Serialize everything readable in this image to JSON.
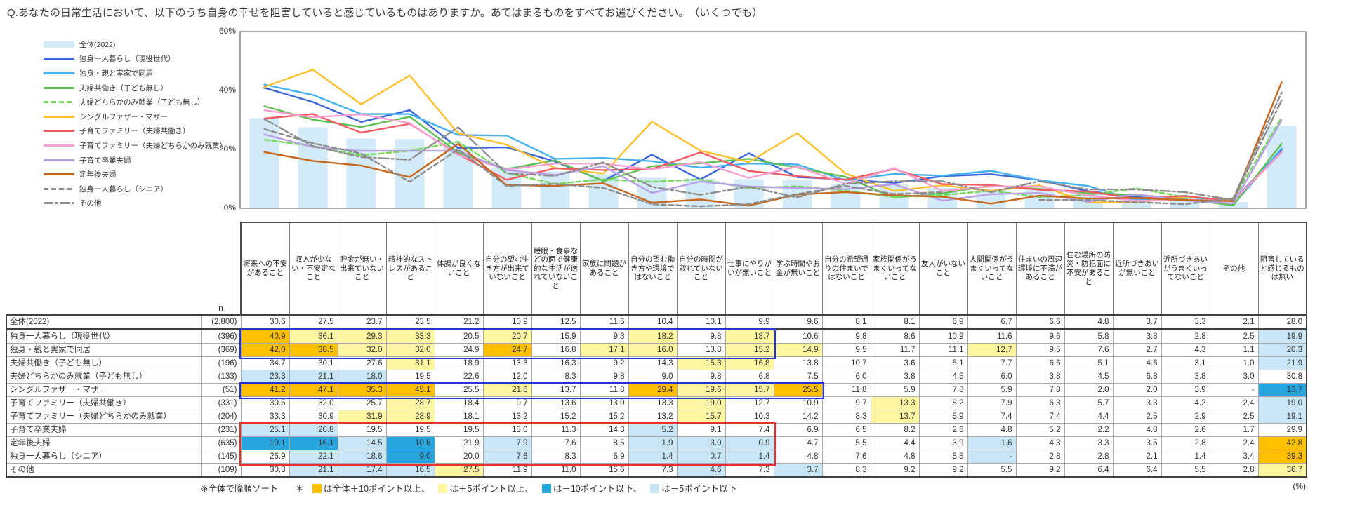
{
  "title": "Q.あなたの日常生活において、以下のうち自身の幸せを阻害していると感じているものはありますか。あてはまるものをすべてお選びください。　（いくつでも）",
  "chart": {
    "y_ticks": [
      {
        "label": "60%",
        "value": 60
      },
      {
        "label": "40%",
        "value": 40
      },
      {
        "label": "20%",
        "value": 20
      },
      {
        "label": "0%",
        "value": 0
      }
    ]
  },
  "chart_data": {
    "type": "line",
    "title": "",
    "xlabel": "",
    "ylabel": "",
    "ylim": [
      0,
      60
    ],
    "grid": false,
    "legend_position": "left",
    "categories": [
      "将来への不安があること",
      "収入が少ない・不安定なこと",
      "貯金が無い・出来ていないこと",
      "精神的なストレスがあること",
      "体調が良くないこと",
      "自分の望む生き方が出来ていないこと",
      "睡眠・食事などの面で健康的な生活が送れていないこと",
      "家族に問題があること",
      "自分の望む働き方や環境ではないこと",
      "自分の時間が取れていないこと",
      "仕事にやりがいが無いこと",
      "学ぶ時間やお金が無いこと",
      "自分の希望通りの住まいではないこと",
      "家族関係がうまくいってないこと",
      "友人がいないこと",
      "人間関係がうまくいってないこと",
      "住まいの周辺環境に不満があること",
      "住む場所の防災・防犯面に不安があること",
      "近所づきあいが無いこと",
      "近所づきあいがうまくいってないこと",
      "その他",
      "阻害していると感じるものは無い"
    ],
    "series": [
      {
        "name": "全体(2022)",
        "style": "band",
        "color": "#D3EAF8",
        "values": [
          30.6,
          27.5,
          23.7,
          23.5,
          21.2,
          13.9,
          12.5,
          11.6,
          10.4,
          10.1,
          9.9,
          9.6,
          8.1,
          8.1,
          6.9,
          6.7,
          6.6,
          4.8,
          3.7,
          3.3,
          2.1,
          28.0
        ]
      },
      {
        "name": "独身一人暮らし（現役世代）",
        "style": "solid",
        "color": "#3D66D9",
        "values": [
          40.9,
          36.1,
          29.3,
          33.3,
          20.5,
          20.7,
          15.9,
          9.3,
          18.2,
          9.8,
          18.7,
          10.6,
          9.8,
          8.6,
          10.9,
          11.6,
          9.6,
          5.8,
          3.8,
          2.8,
          2.5,
          19.9
        ]
      },
      {
        "name": "独身・親と実家で同居",
        "style": "solid",
        "color": "#45B1F0",
        "values": [
          42.0,
          38.5,
          32.0,
          32.0,
          24.9,
          24.7,
          16.8,
          17.1,
          16.0,
          13.8,
          15.2,
          14.9,
          9.5,
          11.7,
          11.1,
          12.7,
          9.5,
          7.6,
          2.7,
          4.3,
          1.1,
          20.3
        ]
      },
      {
        "name": "夫婦共働き（子ども無し）",
        "style": "solid",
        "color": "#5EC050",
        "values": [
          34.7,
          30.1,
          27.6,
          31.1,
          18.9,
          13.3,
          16.3,
          9.2,
          14.3,
          15.3,
          16.8,
          13.8,
          10.7,
          3.6,
          5.1,
          7.7,
          6.6,
          5.1,
          4.6,
          3.1,
          1.0,
          21.9
        ]
      },
      {
        "name": "夫婦どちらかのみ就業（子ども無し）",
        "style": "dashed",
        "color": "#77D95A",
        "values": [
          23.3,
          21.1,
          18.0,
          19.5,
          22.6,
          12.0,
          8.3,
          9.8,
          9.0,
          9.8,
          6.8,
          7.5,
          6.0,
          3.8,
          4.5,
          6.0,
          3.8,
          4.5,
          6.8,
          3.8,
          3.0,
          30.8
        ]
      },
      {
        "name": "シングルファザー・マザー",
        "style": "solid",
        "color": "#FFC02E",
        "values": [
          41.2,
          47.1,
          35.3,
          45.1,
          25.5,
          21.6,
          13.7,
          11.8,
          29.4,
          19.6,
          15.7,
          25.5,
          11.8,
          5.9,
          7.8,
          5.9,
          7.8,
          2.0,
          2.0,
          3.9,
          null,
          13.7
        ]
      },
      {
        "name": "子育てファミリー（夫婦共働き）",
        "style": "solid",
        "color": "#F15B64",
        "values": [
          30.5,
          32.0,
          25.7,
          28.7,
          18.4,
          9.7,
          13.6,
          13.0,
          13.3,
          19.0,
          12.7,
          10.9,
          9.7,
          13.3,
          8.2,
          7.9,
          6.3,
          5.7,
          3.3,
          4.2,
          2.4,
          19.0
        ]
      },
      {
        "name": "子育てファミリー（夫婦どちらかのみ就業）",
        "style": "solid",
        "color": "#F89FD4",
        "values": [
          33.3,
          30.9,
          31.9,
          28.9,
          18.1,
          13.2,
          15.2,
          15.2,
          13.2,
          15.7,
          10.3,
          14.2,
          8.3,
          13.7,
          5.9,
          7.4,
          7.4,
          4.4,
          2.5,
          2.9,
          2.5,
          19.1
        ]
      },
      {
        "name": "子育て卒業夫婦",
        "style": "solid",
        "color": "#B9A0E8",
        "values": [
          25.1,
          20.8,
          19.5,
          19.5,
          19.5,
          13.0,
          11.3,
          14.3,
          5.2,
          9.1,
          7.4,
          6.9,
          6.5,
          8.2,
          2.6,
          4.8,
          5.2,
          2.2,
          4.8,
          2.6,
          1.7,
          29.9
        ]
      },
      {
        "name": "定年後夫婦",
        "style": "solid",
        "color": "#C8661B",
        "values": [
          19.1,
          16.1,
          14.5,
          10.6,
          21.9,
          7.9,
          7.6,
          8.5,
          1.9,
          3.0,
          0.9,
          4.7,
          5.5,
          4.4,
          3.9,
          1.6,
          4.3,
          3.3,
          3.5,
          2.8,
          2.4,
          42.8
        ]
      },
      {
        "name": "独身一人暮らし（シニア）",
        "style": "dashed",
        "color": "#8C8C8C",
        "values": [
          26.9,
          22.1,
          18.6,
          9.0,
          20.0,
          7.6,
          8.3,
          6.9,
          1.4,
          0.7,
          1.4,
          4.8,
          7.6,
          4.8,
          5.5,
          null,
          2.8,
          2.8,
          2.1,
          1.4,
          3.4,
          39.3
        ]
      },
      {
        "name": "その他",
        "style": "dashdot",
        "color": "#8C8C8C",
        "values": [
          30.3,
          21.1,
          17.4,
          16.5,
          27.5,
          11.9,
          11.0,
          15.6,
          7.3,
          4.6,
          7.3,
          3.7,
          8.3,
          9.2,
          9.2,
          5.5,
          9.2,
          6.4,
          6.4,
          5.5,
          2.8,
          36.7
        ]
      }
    ]
  },
  "table": {
    "n_header": "n",
    "rows": [
      {
        "label": "全体(2022)",
        "n": "(2,800)",
        "values": [
          "30.6",
          "27.5",
          "23.7",
          "23.5",
          "21.2",
          "13.9",
          "12.5",
          "11.6",
          "10.4",
          "10.1",
          "9.9",
          "9.6",
          "8.1",
          "8.1",
          "6.9",
          "6.7",
          "6.6",
          "4.8",
          "3.7",
          "3.3",
          "2.1",
          "28.0"
        ],
        "hl": [
          "",
          "",
          "",
          "",
          "",
          "",
          "",
          "",
          "",
          "",
          "",
          "",
          "",
          "",
          "",
          "",
          "",
          "",
          "",
          "",
          "",
          ""
        ]
      },
      {
        "label": "独身一人暮らし（現役世代）",
        "n": "(396)",
        "values": [
          "40.9",
          "36.1",
          "29.3",
          "33.3",
          "20.5",
          "20.7",
          "15.9",
          "9.3",
          "18.2",
          "9.8",
          "18.7",
          "10.6",
          "9.8",
          "8.6",
          "10.9",
          "11.6",
          "9.6",
          "5.8",
          "3.8",
          "2.8",
          "2.5",
          "19.9"
        ],
        "hl": [
          "o",
          "y",
          "y",
          "y",
          "",
          "y",
          "",
          "",
          "y",
          "",
          "y",
          "",
          "",
          "",
          "",
          "",
          "",
          "",
          "",
          "",
          "",
          "lb"
        ]
      },
      {
        "label": "独身・親と実家で同居",
        "n": "(369)",
        "values": [
          "42.0",
          "38.5",
          "32.0",
          "32.0",
          "24.9",
          "24.7",
          "16.8",
          "17.1",
          "16.0",
          "13.8",
          "15.2",
          "14.9",
          "9.5",
          "11.7",
          "11.1",
          "12.7",
          "9.5",
          "7.6",
          "2.7",
          "4.3",
          "1.1",
          "20.3"
        ],
        "hl": [
          "o",
          "o",
          "y",
          "y",
          "",
          "o",
          "",
          "y",
          "y",
          "",
          "y",
          "y",
          "",
          "",
          "",
          "y",
          "",
          "",
          "",
          "",
          "",
          "lb"
        ]
      },
      {
        "label": "夫婦共働き（子ども無し）",
        "n": "(196)",
        "values": [
          "34.7",
          "30.1",
          "27.6",
          "31.1",
          "18.9",
          "13.3",
          "16.3",
          "9.2",
          "14.3",
          "15.3",
          "16.8",
          "13.8",
          "10.7",
          "3.6",
          "5.1",
          "7.7",
          "6.6",
          "5.1",
          "4.6",
          "3.1",
          "1.0",
          "21.9"
        ],
        "hl": [
          "",
          "",
          "",
          "y",
          "",
          "",
          "",
          "",
          "",
          "y",
          "y",
          "",
          "",
          "",
          "",
          "",
          "",
          "",
          "",
          "",
          "",
          "lb"
        ]
      },
      {
        "label": "夫婦どちらかのみ就業（子ども無し）",
        "n": "(133)",
        "values": [
          "23.3",
          "21.1",
          "18.0",
          "19.5",
          "22.6",
          "12.0",
          "8.3",
          "9.8",
          "9.0",
          "9.8",
          "6.8",
          "7.5",
          "6.0",
          "3.8",
          "4.5",
          "6.0",
          "3.8",
          "4.5",
          "6.8",
          "3.8",
          "3.0",
          "30.8"
        ],
        "hl": [
          "lb",
          "lb",
          "lb",
          "",
          "",
          "",
          "",
          "",
          "",
          "",
          "",
          "",
          "",
          "",
          "",
          "",
          "",
          "",
          "",
          "",
          "",
          ""
        ]
      },
      {
        "label": "シングルファザー・マザー",
        "n": "(51)",
        "values": [
          "41.2",
          "47.1",
          "35.3",
          "45.1",
          "25.5",
          "21.6",
          "13.7",
          "11.8",
          "29.4",
          "19.6",
          "15.7",
          "25.5",
          "11.8",
          "5.9",
          "7.8",
          "5.9",
          "7.8",
          "2.0",
          "2.0",
          "3.9",
          "-",
          "13.7"
        ],
        "hl": [
          "o",
          "o",
          "o",
          "o",
          "",
          "y",
          "",
          "",
          "o",
          "y",
          "y",
          "o",
          "",
          "",
          "",
          "",
          "",
          "",
          "",
          "",
          "",
          "b"
        ]
      },
      {
        "label": "子育てファミリー（夫婦共働き）",
        "n": "(331)",
        "values": [
          "30.5",
          "32.0",
          "25.7",
          "28.7",
          "18.4",
          "9.7",
          "13.6",
          "13.0",
          "13.3",
          "19.0",
          "12.7",
          "10.9",
          "9.7",
          "13.3",
          "8.2",
          "7.9",
          "6.3",
          "5.7",
          "3.3",
          "4.2",
          "2.4",
          "19.0"
        ],
        "hl": [
          "",
          "",
          "",
          "y",
          "",
          "",
          "",
          "",
          "",
          "y",
          "",
          "",
          "",
          "y",
          "",
          "",
          "",
          "",
          "",
          "",
          "",
          "lb"
        ]
      },
      {
        "label": "子育てファミリー（夫婦どちらかのみ就業）",
        "n": "(204)",
        "values": [
          "33.3",
          "30.9",
          "31.9",
          "28.9",
          "18.1",
          "13.2",
          "15.2",
          "15.2",
          "13.2",
          "15.7",
          "10.3",
          "14.2",
          "8.3",
          "13.7",
          "5.9",
          "7.4",
          "7.4",
          "4.4",
          "2.5",
          "2.9",
          "2.5",
          "19.1"
        ],
        "hl": [
          "",
          "",
          "y",
          "y",
          "",
          "",
          "",
          "",
          "",
          "y",
          "",
          "",
          "",
          "y",
          "",
          "",
          "",
          "",
          "",
          "",
          "",
          "lb"
        ]
      },
      {
        "label": "子育て卒業夫婦",
        "n": "(231)",
        "values": [
          "25.1",
          "20.8",
          "19.5",
          "19.5",
          "19.5",
          "13.0",
          "11.3",
          "14.3",
          "5.2",
          "9.1",
          "7.4",
          "6.9",
          "6.5",
          "8.2",
          "2.6",
          "4.8",
          "5.2",
          "2.2",
          "4.8",
          "2.6",
          "1.7",
          "29.9"
        ],
        "hl": [
          "lb",
          "lb",
          "",
          "",
          "",
          "",
          "",
          "",
          "lb",
          "",
          "",
          "",
          "",
          "",
          "",
          "",
          "",
          "",
          "",
          "",
          "",
          ""
        ]
      },
      {
        "label": "定年後夫婦",
        "n": "(635)",
        "values": [
          "19.1",
          "16.1",
          "14.5",
          "10.6",
          "21.9",
          "7.9",
          "7.6",
          "8.5",
          "1.9",
          "3.0",
          "0.9",
          "4.7",
          "5.5",
          "4.4",
          "3.9",
          "1.6",
          "4.3",
          "3.3",
          "3.5",
          "2.8",
          "2.4",
          "42.8"
        ],
        "hl": [
          "b",
          "b",
          "lb",
          "b",
          "",
          "lb",
          "",
          "",
          "lb",
          "lb",
          "lb",
          "",
          "",
          "",
          "",
          "lb",
          "",
          "",
          "",
          "",
          "",
          "o"
        ]
      },
      {
        "label": "独身一人暮らし（シニア）",
        "n": "(145)",
        "values": [
          "26.9",
          "22.1",
          "18.6",
          "9.0",
          "20.0",
          "7.6",
          "8.3",
          "6.9",
          "1.4",
          "0.7",
          "1.4",
          "4.8",
          "7.6",
          "4.8",
          "5.5",
          "-",
          "2.8",
          "2.8",
          "2.1",
          "1.4",
          "3.4",
          "39.3"
        ],
        "hl": [
          "",
          "lb",
          "lb",
          "b",
          "",
          "lb",
          "",
          "",
          "lb",
          "lb",
          "lb",
          "",
          "",
          "",
          "",
          "lb",
          "",
          "",
          "",
          "",
          "",
          "o"
        ]
      },
      {
        "label": "その他",
        "n": "(109)",
        "values": [
          "30.3",
          "21.1",
          "17.4",
          "16.5",
          "27.5",
          "11.9",
          "11.0",
          "15.6",
          "7.3",
          "4.6",
          "7.3",
          "3.7",
          "8.3",
          "9.2",
          "9.2",
          "5.5",
          "9.2",
          "6.4",
          "6.4",
          "5.5",
          "2.8",
          "36.7"
        ],
        "hl": [
          "",
          "lb",
          "lb",
          "lb",
          "y",
          "",
          "",
          "",
          "",
          "lb",
          "",
          "lb",
          "",
          "",
          "",
          "",
          "",
          "",
          "",
          "",
          "",
          "y"
        ]
      }
    ],
    "rects": [
      {
        "color": "#2433D6",
        "row_start": 1,
        "row_end": 2,
        "col_start": 0,
        "col_end": 10
      },
      {
        "color": "#2433D6",
        "row_start": 5,
        "row_end": 5,
        "col_start": 0,
        "col_end": 11
      },
      {
        "color": "#E8312B",
        "row_start": 8,
        "row_end": 10,
        "col_start": 0,
        "col_end": 10
      }
    ]
  },
  "footer": {
    "sort_note": "※全体で降順ソート",
    "star": "＊",
    "legend": [
      {
        "color": "#FFC000",
        "text": "は全体＋10ポイント以上、"
      },
      {
        "color": "#FFF6A1",
        "text": "は＋5ポイント以上、"
      },
      {
        "color": "#27A5DF",
        "text": "は－10ポイント以下、"
      },
      {
        "color": "#C8E6F6",
        "text": "は－5ポイント以下"
      }
    ],
    "unit": "(%)"
  },
  "colors": {
    "hl_plus10": "#FFC000",
    "hl_plus5": "#FFF6A1",
    "hl_minus10": "#27A5DF",
    "hl_minus5": "#C8E6F6"
  }
}
